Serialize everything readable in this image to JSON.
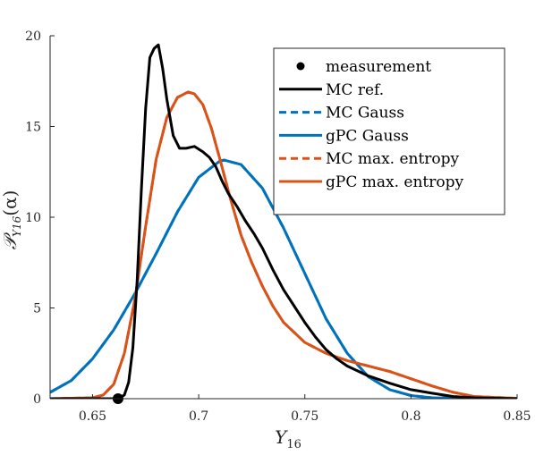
{
  "chart_data": {
    "type": "line",
    "xlabel": "Y",
    "xlabel_sub": "16",
    "ylabel": "𝒫",
    "ylabel_sub": "Y16",
    "ylabel_arg": "(α)",
    "xlim": [
      0.63,
      0.85
    ],
    "ylim": [
      0,
      20
    ],
    "x_ticks": [
      0.65,
      0.7,
      0.75,
      0.8,
      0.85
    ],
    "x_tick_labels": [
      "0.65",
      "0.7",
      "0.75",
      "0.8",
      "0.85"
    ],
    "y_ticks": [
      0,
      5,
      10,
      15,
      20
    ],
    "y_tick_labels": [
      "0",
      "5",
      "10",
      "15",
      "20"
    ],
    "legend_position": "top-right",
    "measurement": {
      "name": "measurement",
      "x": 0.662,
      "y": 0,
      "color": "#000000"
    },
    "series": [
      {
        "name": "MC ref.",
        "color": "#000000",
        "dash": "solid",
        "x": [
          0.63,
          0.655,
          0.662,
          0.665,
          0.667,
          0.669,
          0.671,
          0.673,
          0.675,
          0.677,
          0.679,
          0.681,
          0.683,
          0.685,
          0.688,
          0.691,
          0.694,
          0.698,
          0.702,
          0.705,
          0.708,
          0.711,
          0.714,
          0.718,
          0.722,
          0.726,
          0.73,
          0.735,
          0.74,
          0.745,
          0.75,
          0.755,
          0.76,
          0.765,
          0.77,
          0.78,
          0.79,
          0.8,
          0.81,
          0.82,
          0.83,
          0.85
        ],
        "y": [
          0,
          0,
          0,
          0.2,
          0.9,
          2.8,
          6.5,
          11.5,
          16.0,
          18.8,
          19.3,
          19.5,
          18.2,
          16.5,
          14.5,
          13.8,
          13.8,
          13.9,
          13.6,
          13.3,
          12.8,
          12.0,
          11.3,
          10.6,
          9.8,
          9.1,
          8.3,
          7.1,
          6.0,
          5.1,
          4.2,
          3.4,
          2.7,
          2.2,
          1.8,
          1.25,
          0.85,
          0.5,
          0.3,
          0.12,
          0.05,
          0.0
        ]
      },
      {
        "name": "MC Gauss",
        "color": "#0072BD",
        "dash": "dashed",
        "x": [
          0.63,
          0.64,
          0.65,
          0.66,
          0.67,
          0.68,
          0.69,
          0.7,
          0.71,
          0.712,
          0.72,
          0.73,
          0.74,
          0.75,
          0.76,
          0.77,
          0.78,
          0.79,
          0.8,
          0.81,
          0.85
        ],
        "y": [
          0.35,
          1.0,
          2.2,
          3.8,
          5.8,
          8.0,
          10.3,
          12.2,
          13.1,
          13.15,
          12.9,
          11.6,
          9.4,
          6.9,
          4.4,
          2.5,
          1.2,
          0.5,
          0.17,
          0.05,
          0.0
        ]
      },
      {
        "name": "gPC Gauss",
        "color": "#0072BD",
        "dash": "solid",
        "x": [
          0.63,
          0.64,
          0.65,
          0.66,
          0.67,
          0.68,
          0.69,
          0.7,
          0.71,
          0.712,
          0.72,
          0.73,
          0.74,
          0.75,
          0.76,
          0.77,
          0.78,
          0.79,
          0.8,
          0.81,
          0.85
        ],
        "y": [
          0.35,
          1.0,
          2.2,
          3.8,
          5.8,
          8.0,
          10.3,
          12.2,
          13.1,
          13.15,
          12.9,
          11.6,
          9.4,
          6.9,
          4.4,
          2.5,
          1.2,
          0.5,
          0.17,
          0.05,
          0.0
        ]
      },
      {
        "name": "MC max. entropy",
        "color": "#D95319",
        "dash": "dashed",
        "x": [
          0.63,
          0.65,
          0.655,
          0.66,
          0.665,
          0.67,
          0.675,
          0.68,
          0.685,
          0.69,
          0.695,
          0.698,
          0.702,
          0.706,
          0.71,
          0.715,
          0.72,
          0.725,
          0.73,
          0.735,
          0.74,
          0.75,
          0.76,
          0.77,
          0.78,
          0.79,
          0.8,
          0.81,
          0.82,
          0.83,
          0.85
        ],
        "y": [
          0,
          0.05,
          0.2,
          0.8,
          2.5,
          5.5,
          9.5,
          13.2,
          15.5,
          16.6,
          16.9,
          16.8,
          16.2,
          14.9,
          13.2,
          11.0,
          9.0,
          7.5,
          6.2,
          5.1,
          4.2,
          3.1,
          2.5,
          2.1,
          1.8,
          1.5,
          1.1,
          0.7,
          0.35,
          0.12,
          0.02
        ]
      },
      {
        "name": "gPC max. entropy",
        "color": "#D95319",
        "dash": "solid",
        "x": [
          0.63,
          0.65,
          0.655,
          0.66,
          0.665,
          0.67,
          0.675,
          0.68,
          0.685,
          0.69,
          0.695,
          0.698,
          0.702,
          0.706,
          0.71,
          0.715,
          0.72,
          0.725,
          0.73,
          0.735,
          0.74,
          0.75,
          0.76,
          0.77,
          0.78,
          0.79,
          0.8,
          0.81,
          0.82,
          0.83,
          0.85
        ],
        "y": [
          0,
          0.05,
          0.2,
          0.8,
          2.5,
          5.5,
          9.5,
          13.2,
          15.5,
          16.6,
          16.9,
          16.8,
          16.2,
          14.9,
          13.2,
          11.0,
          9.0,
          7.5,
          6.2,
          5.1,
          4.2,
          3.1,
          2.5,
          2.1,
          1.8,
          1.5,
          1.1,
          0.7,
          0.35,
          0.12,
          0.02
        ]
      }
    ]
  }
}
